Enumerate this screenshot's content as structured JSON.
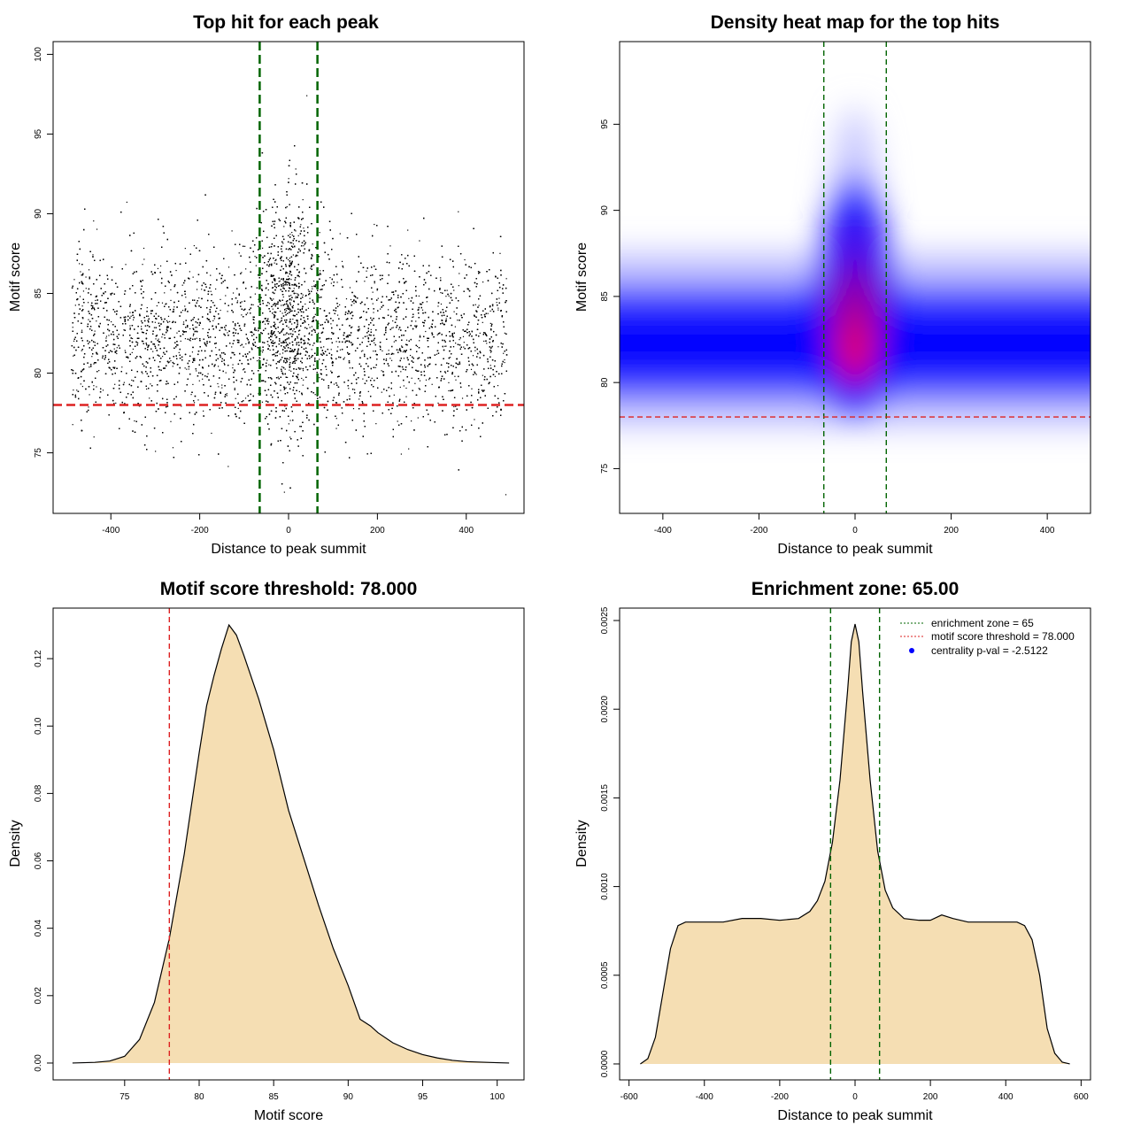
{
  "chart_data": [
    {
      "type": "scatter",
      "title": "Top hit for each peak",
      "xlabel": "Distance to peak summit",
      "ylabel": "Motif score",
      "xlim": [
        -530,
        530
      ],
      "ylim": [
        71.2,
        100.8
      ],
      "xticks": [
        -400,
        -200,
        0,
        200,
        400
      ],
      "yticks": [
        75,
        80,
        85,
        90,
        95,
        100
      ],
      "xtick_labels": [
        "-400",
        "-200",
        "0",
        "200",
        "400"
      ],
      "ytick_labels": [
        "75",
        "80",
        "85",
        "90",
        "95",
        "100"
      ],
      "x_range_of_points": [
        -490,
        490
      ],
      "y_range_of_points": [
        72.4,
        99.8
      ],
      "point_color": "#000000",
      "threshold_line": {
        "value": 78.0,
        "color": "#dd2222"
      },
      "zone_lines": {
        "values": [
          -65,
          65
        ],
        "color": "#006400"
      },
      "grid": false
    },
    {
      "type": "heatmap",
      "title": "Density heat map for the top hits",
      "xlabel": "Distance to peak summit",
      "ylabel": "Motif score",
      "xlim": [
        -490,
        490
      ],
      "ylim": [
        72.4,
        99.8
      ],
      "xticks": [
        -400,
        -200,
        0,
        200,
        400
      ],
      "yticks": [
        75,
        80,
        85,
        90,
        95
      ],
      "xtick_labels": [
        "-400",
        "-200",
        "0",
        "200",
        "400"
      ],
      "ytick_labels": [
        "75",
        "80",
        "85",
        "90",
        "95"
      ],
      "color_scale": [
        "#ffffff",
        "#0000ff",
        "#ff0000"
      ],
      "density_peak": {
        "x": 0,
        "y": 83
      },
      "threshold_line": {
        "value": 78.0,
        "color": "#dd2222"
      },
      "zone_lines": {
        "values": [
          -65,
          65
        ],
        "color": "#006400"
      },
      "grid": false
    },
    {
      "type": "area",
      "title": "Motif score threshold: 78.000",
      "xlabel": "Motif score",
      "ylabel": "Density",
      "xlim": [
        70.2,
        101.8
      ],
      "ylim": [
        -0.005,
        0.135
      ],
      "xticks": [
        75,
        80,
        85,
        90,
        95,
        100
      ],
      "yticks": [
        0,
        0.02,
        0.04,
        0.06,
        0.08,
        0.1,
        0.12
      ],
      "xtick_labels": [
        "75",
        "80",
        "85",
        "90",
        "95",
        "100"
      ],
      "ytick_labels": [
        "0.00",
        "0.02",
        "0.04",
        "0.06",
        "0.08",
        "0.10",
        "0.12"
      ],
      "x": [
        71.5,
        73,
        74,
        75,
        76,
        77,
        78,
        79,
        80,
        80.5,
        81,
        81.5,
        82,
        82.5,
        83,
        84,
        85,
        86,
        87,
        88,
        89,
        90,
        90.8,
        91.5,
        92,
        93,
        94,
        95,
        96,
        97,
        98,
        100,
        100.8
      ],
      "values": [
        0,
        0.0002,
        0.0006,
        0.002,
        0.007,
        0.018,
        0.037,
        0.062,
        0.092,
        0.106,
        0.115,
        0.123,
        0.13,
        0.127,
        0.121,
        0.108,
        0.093,
        0.075,
        0.061,
        0.047,
        0.034,
        0.023,
        0.013,
        0.011,
        0.009,
        0.006,
        0.004,
        0.0025,
        0.0015,
        0.0008,
        0.0004,
        0.0001,
        0
      ],
      "fill_color": "#f5deb3",
      "threshold_line": {
        "value": 78.0,
        "color": "#dd2222"
      },
      "grid": false
    },
    {
      "type": "area",
      "title": "Enrichment zone: 65.00",
      "xlabel": "Distance to peak summit",
      "ylabel": "Density",
      "xlim": [
        -625,
        625
      ],
      "ylim": [
        -9e-05,
        0.00257
      ],
      "xticks": [
        -600,
        -400,
        -200,
        0,
        200,
        400,
        600
      ],
      "yticks": [
        0,
        0.0005,
        0.001,
        0.0015,
        0.002,
        0.0025
      ],
      "xtick_labels": [
        "-600",
        "-400",
        "-200",
        "0",
        "200",
        "400",
        "600"
      ],
      "ytick_labels": [
        "0.0000",
        "0.0005",
        "0.0010",
        "0.0015",
        "0.0020",
        "0.0025"
      ],
      "x": [
        -570,
        -550,
        -530,
        -510,
        -490,
        -470,
        -450,
        -430,
        -400,
        -350,
        -300,
        -250,
        -200,
        -150,
        -120,
        -100,
        -80,
        -60,
        -40,
        -20,
        -10,
        0,
        10,
        20,
        40,
        60,
        80,
        100,
        130,
        170,
        200,
        230,
        260,
        300,
        350,
        400,
        430,
        450,
        470,
        490,
        510,
        530,
        550,
        570
      ],
      "values": [
        0,
        3e-05,
        0.00015,
        0.0004,
        0.00065,
        0.00078,
        0.0008,
        0.0008,
        0.0008,
        0.0008,
        0.00082,
        0.00082,
        0.00081,
        0.00082,
        0.00086,
        0.00092,
        0.00103,
        0.00125,
        0.0016,
        0.0021,
        0.00238,
        0.00248,
        0.00238,
        0.0021,
        0.0016,
        0.0012,
        0.00098,
        0.00088,
        0.00082,
        0.00081,
        0.00081,
        0.00084,
        0.00082,
        0.0008,
        0.0008,
        0.0008,
        0.0008,
        0.00078,
        0.0007,
        0.0005,
        0.0002,
        6e-05,
        1e-05,
        0
      ],
      "fill_color": "#f5deb3",
      "zone_lines": {
        "values": [
          -65,
          65
        ],
        "color": "#006400"
      },
      "legend": {
        "position": "top-right",
        "entries": [
          {
            "label": "enrichment zone = 65",
            "kind": "dotted-line",
            "color": "#006400"
          },
          {
            "label": "motif score threshold = 78.000",
            "kind": "dotted-line",
            "color": "#dd2222"
          },
          {
            "label": "centrality p-val = -2.5122",
            "kind": "point",
            "color": "#0000ff"
          }
        ]
      },
      "grid": false
    }
  ]
}
